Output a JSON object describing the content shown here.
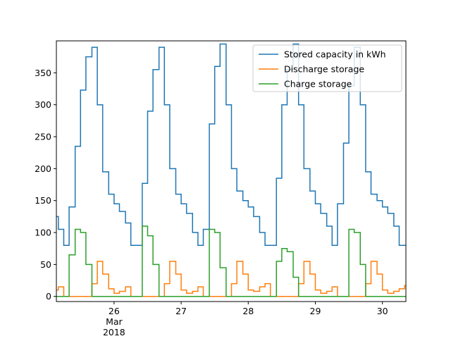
{
  "chart_data": {
    "type": "step",
    "x_sublabel": [
      "Mar",
      "2018"
    ],
    "x": [
      25.08,
      25.17,
      25.25,
      25.33,
      25.42,
      25.5,
      25.58,
      25.67,
      25.75,
      25.83,
      25.92,
      26,
      26.08,
      26.17,
      26.25,
      26.33,
      26.42,
      26.5,
      26.58,
      26.67,
      26.75,
      26.83,
      26.92,
      27,
      27.08,
      27.17,
      27.25,
      27.33,
      27.42,
      27.5,
      27.58,
      27.67,
      27.75,
      27.83,
      27.92,
      28,
      28.08,
      28.17,
      28.25,
      28.33,
      28.42,
      28.5,
      28.58,
      28.67,
      28.75,
      28.83,
      28.92,
      29,
      29.08,
      29.17,
      29.25,
      29.33,
      29.42,
      29.5,
      29.58,
      29.67,
      29.75,
      29.83,
      29.92,
      30,
      30.08,
      30.17,
      30.25,
      30.33
    ],
    "series": [
      {
        "name": "Stored capacity in kWh",
        "color": "#1f77b4",
        "values": [
          125,
          105,
          80,
          140,
          235,
          323,
          375,
          390,
          300,
          195,
          160,
          145,
          133,
          115,
          80,
          80,
          177,
          290,
          355,
          390,
          300,
          200,
          160,
          145,
          130,
          100,
          80,
          105,
          270,
          360,
          395,
          300,
          200,
          165,
          150,
          140,
          125,
          100,
          80,
          80,
          185,
          300,
          355,
          395,
          300,
          200,
          165,
          145,
          130,
          110,
          80,
          145,
          240,
          330,
          390,
          300,
          195,
          160,
          150,
          140,
          130,
          110,
          80,
          80
        ]
      },
      {
        "name": "Discharge storage",
        "color": "#ff7f0e",
        "values": [
          10,
          15,
          0,
          0,
          0,
          0,
          0,
          20,
          55,
          35,
          12,
          5,
          8,
          15,
          0,
          0,
          0,
          0,
          0,
          0,
          20,
          55,
          35,
          10,
          5,
          8,
          15,
          0,
          0,
          0,
          0,
          0,
          20,
          55,
          35,
          10,
          8,
          15,
          20,
          0,
          0,
          0,
          0,
          0,
          20,
          55,
          35,
          10,
          5,
          8,
          15,
          0,
          0,
          0,
          0,
          0,
          20,
          55,
          35,
          10,
          5,
          8,
          12,
          17
        ]
      },
      {
        "name": "Charge storage",
        "color": "#2ca02c",
        "values": [
          0,
          0,
          0,
          65,
          105,
          100,
          50,
          0,
          0,
          0,
          0,
          0,
          0,
          0,
          0,
          0,
          110,
          95,
          50,
          0,
          0,
          0,
          0,
          0,
          0,
          0,
          0,
          0,
          105,
          100,
          45,
          0,
          0,
          0,
          0,
          0,
          0,
          0,
          0,
          0,
          55,
          75,
          70,
          30,
          0,
          0,
          0,
          0,
          0,
          0,
          0,
          0,
          0,
          105,
          100,
          50,
          0,
          0,
          0,
          0,
          0,
          0,
          0,
          0
        ]
      }
    ],
    "xlim": [
      25.14,
      30.35
    ],
    "xticks": [
      26,
      27,
      28,
      29,
      30
    ],
    "ylim": [
      -8,
      400
    ],
    "yticks": [
      0,
      50,
      100,
      150,
      200,
      250,
      300,
      350
    ],
    "legend": "upper right"
  }
}
